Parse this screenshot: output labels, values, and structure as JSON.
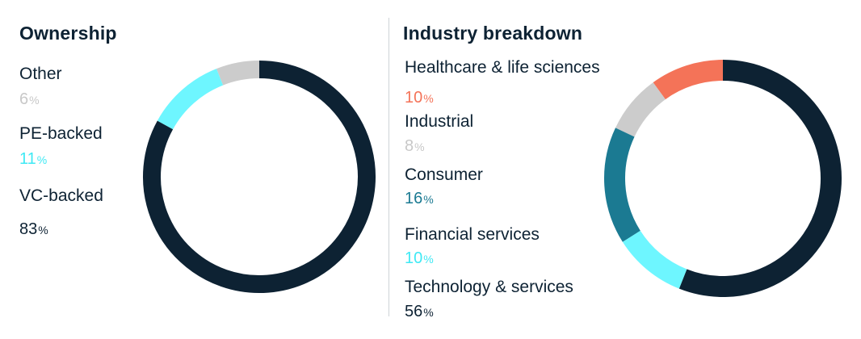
{
  "chart_data": [
    {
      "type": "pie",
      "title": "Ownership",
      "segments": [
        {
          "label": "Other",
          "value": 6,
          "display": "6",
          "color": "#cccccc"
        },
        {
          "label": "PE-backed",
          "value": 11,
          "display": "11",
          "color": "#6ef6ff"
        },
        {
          "label": "VC-backed",
          "value": 83,
          "display": "83",
          "color": "#0d2233"
        }
      ],
      "unit": "%"
    },
    {
      "type": "pie",
      "title": "Industry breakdown",
      "segments": [
        {
          "label": "Healthcare & life sciences",
          "value": 10,
          "display": "10",
          "color": "#f47358"
        },
        {
          "label": "Industrial",
          "value": 8,
          "display": "8",
          "color": "#cccccc"
        },
        {
          "label": "Consumer",
          "value": 16,
          "display": "16",
          "color": "#1b7a92"
        },
        {
          "label": "Financial services",
          "value": 10,
          "display": "10",
          "color": "#6ef6ff"
        },
        {
          "label": "Technology & services",
          "value": 56,
          "display": "56",
          "color": "#0d2233"
        }
      ],
      "unit": "%"
    }
  ]
}
